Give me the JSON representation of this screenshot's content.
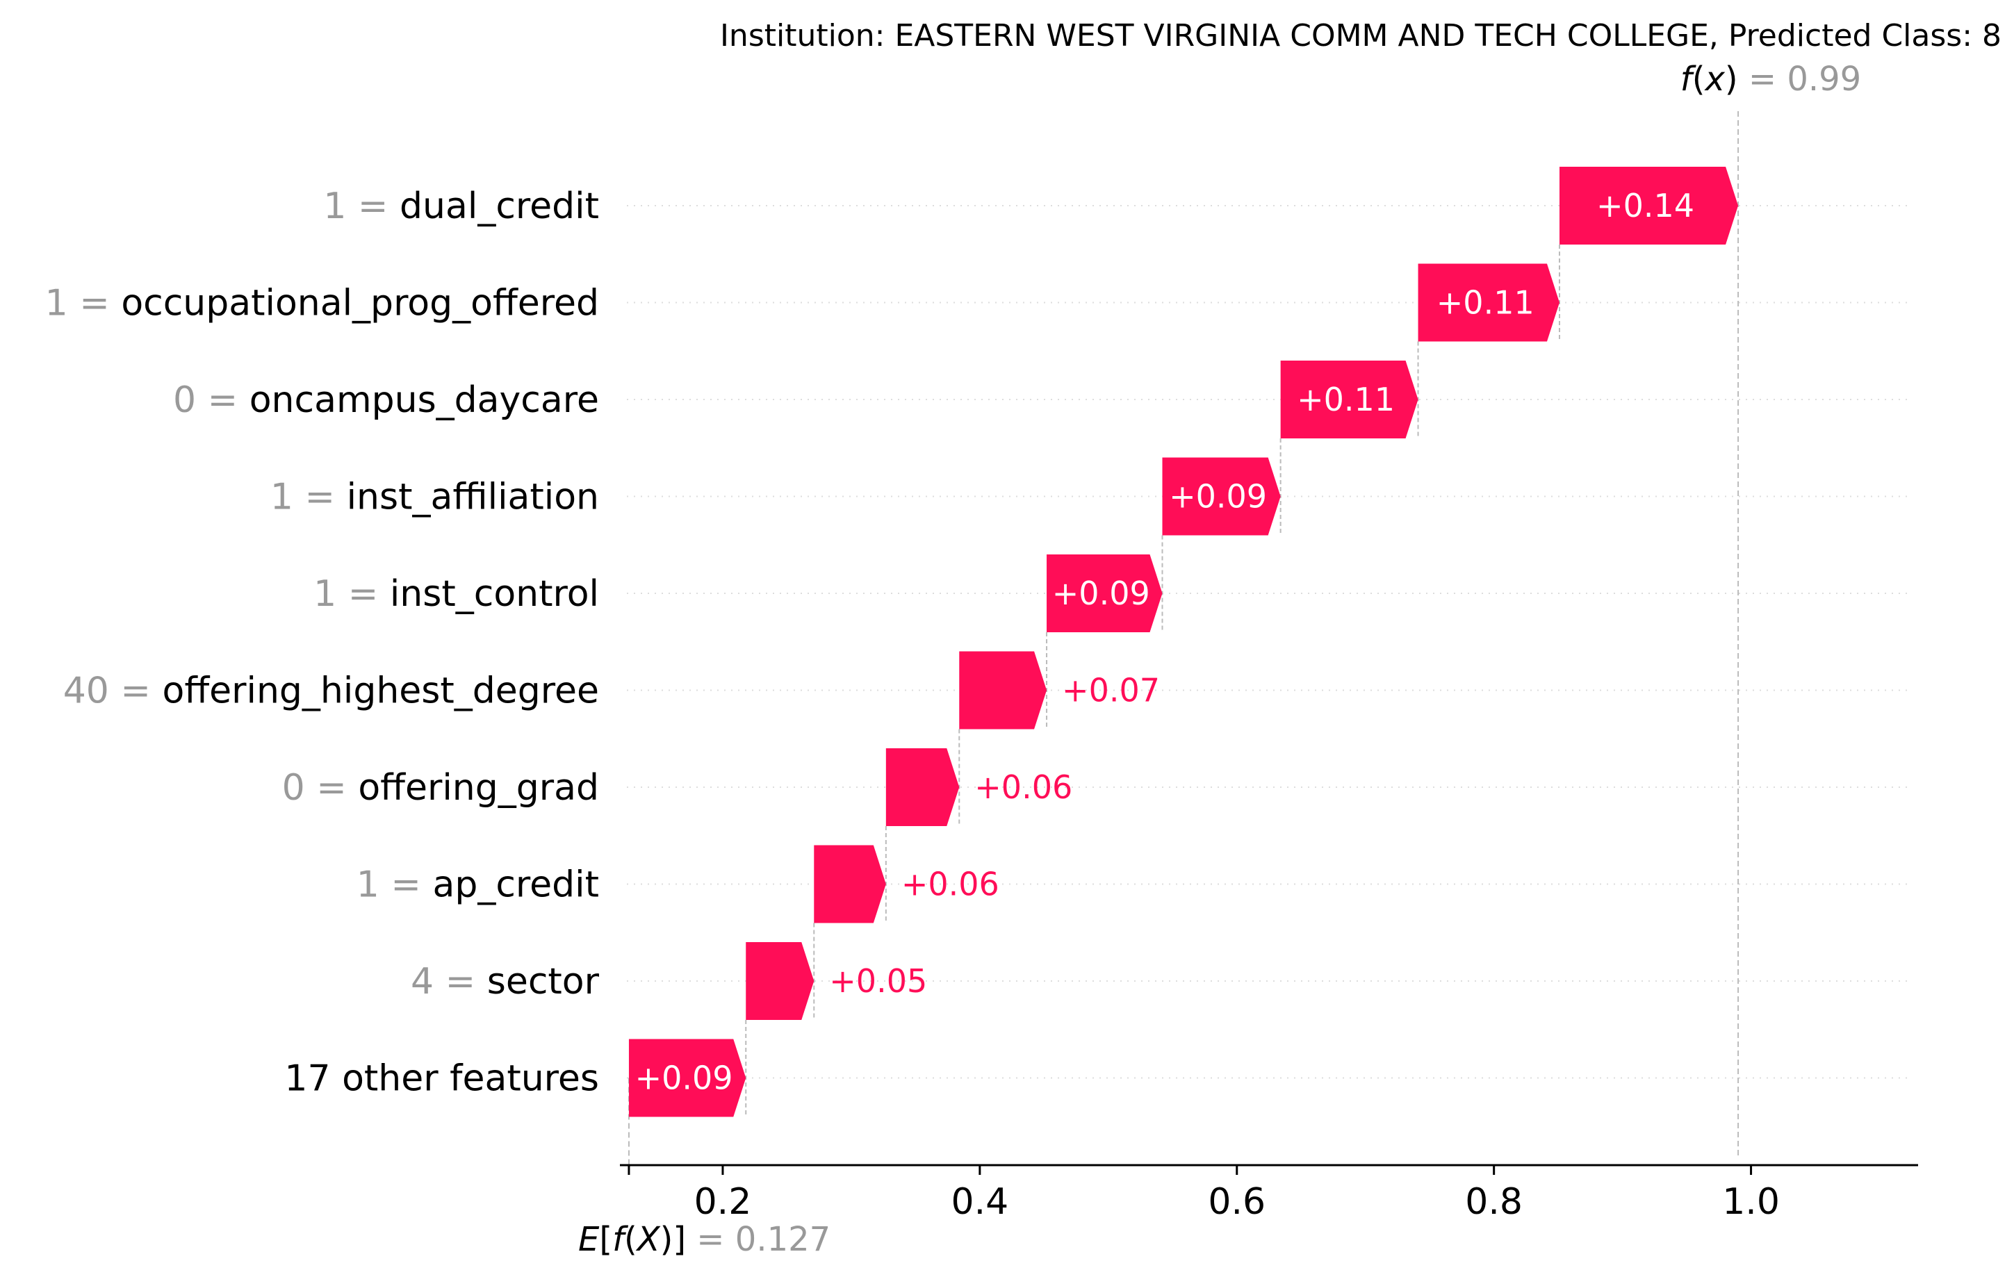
{
  "chart_data": {
    "type": "bar",
    "subtype": "shap-waterfall",
    "title": "Institution: EASTERN WEST VIRGINIA COMM AND TECH COLLEGE, Predicted Class: 8",
    "fx_label": "f(x)",
    "fx_value": "0.99",
    "fx": 0.99,
    "expected_label": "E[f(X)]",
    "expected_value_text": "0.127",
    "expected_value": 0.127,
    "xlim": [
      0.12,
      1.13
    ],
    "xticks": [
      0.2,
      0.4,
      0.6,
      0.8,
      1.0
    ],
    "xtick_labels": [
      "0.2",
      "0.4",
      "0.6",
      "0.8",
      "1.0"
    ],
    "positive_color": "#ff0d57",
    "features": [
      {
        "value": "1",
        "name": "dual_credit",
        "shap": 0.14,
        "label": "+0.14",
        "start": 0.851,
        "end": 0.99
      },
      {
        "value": "1",
        "name": "occupational_prog_offered",
        "shap": 0.11,
        "label": "+0.11",
        "start": 0.741,
        "end": 0.851
      },
      {
        "value": "0",
        "name": "oncampus_daycare",
        "shap": 0.11,
        "label": "+0.11",
        "start": 0.634,
        "end": 0.741
      },
      {
        "value": "1",
        "name": "inst_affiliation",
        "shap": 0.09,
        "label": "+0.09",
        "start": 0.542,
        "end": 0.634
      },
      {
        "value": "1",
        "name": "inst_control",
        "shap": 0.09,
        "label": "+0.09",
        "start": 0.452,
        "end": 0.542
      },
      {
        "value": "40",
        "name": "offering_highest_degree",
        "shap": 0.07,
        "label": "+0.07",
        "start": 0.384,
        "end": 0.452
      },
      {
        "value": "0",
        "name": "offering_grad",
        "shap": 0.06,
        "label": "+0.06",
        "start": 0.327,
        "end": 0.384
      },
      {
        "value": "1",
        "name": "ap_credit",
        "shap": 0.06,
        "label": "+0.06",
        "start": 0.271,
        "end": 0.327
      },
      {
        "value": "4",
        "name": "sector",
        "shap": 0.05,
        "label": "+0.05",
        "start": 0.218,
        "end": 0.271
      },
      {
        "value": "",
        "name": "17 other features",
        "shap": 0.09,
        "label": "+0.09",
        "start": 0.127,
        "end": 0.218
      }
    ]
  }
}
